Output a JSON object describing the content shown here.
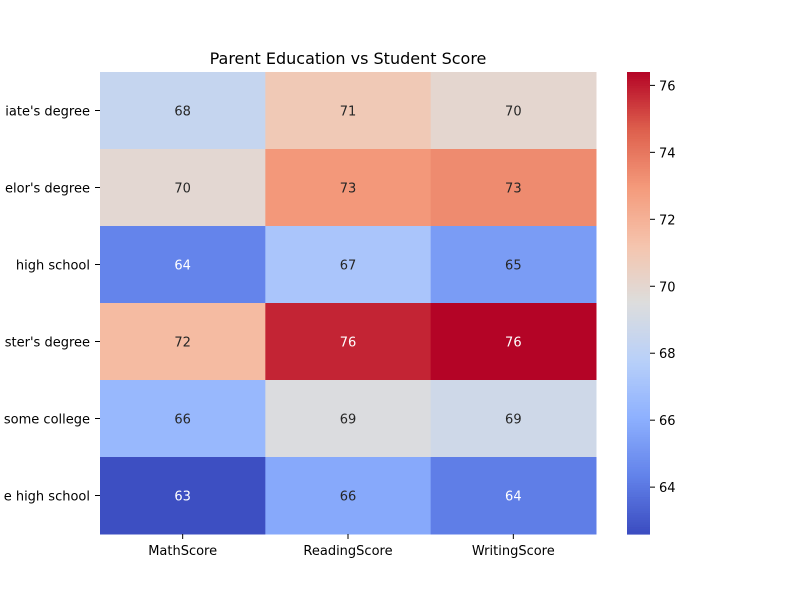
{
  "chart_data": {
    "type": "heatmap",
    "title": "Parent Education vs Student Score",
    "columns": [
      "MathScore",
      "ReadingScore",
      "WritingScore"
    ],
    "rows": [
      "associate's degree",
      "bachelor's degree",
      "high school",
      "master's degree",
      "some college",
      "some high school"
    ],
    "row_labels_visible": [
      "iate's degree",
      "elor's degree",
      "high school",
      "ster's degree",
      "some college",
      "e high school"
    ],
    "values": [
      [
        68.4,
        70.9,
        70.0
      ],
      [
        69.9,
        73.0,
        73.4
      ],
      [
        64.4,
        67.2,
        65.3
      ],
      [
        71.6,
        75.8,
        76.4
      ],
      [
        66.5,
        69.4,
        68.8
      ],
      [
        62.7,
        65.8,
        64.2
      ]
    ],
    "value_labels": [
      [
        "68",
        "71",
        "70"
      ],
      [
        "70",
        "73",
        "73"
      ],
      [
        "64",
        "67",
        "65"
      ],
      [
        "72",
        "76",
        "76"
      ],
      [
        "66",
        "69",
        "69"
      ],
      [
        "63",
        "66",
        "64"
      ]
    ],
    "colormap": "coolwarm",
    "colorbar": {
      "vmin": 62.6,
      "vmax": 76.4,
      "ticks": [
        64,
        66,
        68,
        70,
        72,
        74,
        76
      ]
    }
  }
}
